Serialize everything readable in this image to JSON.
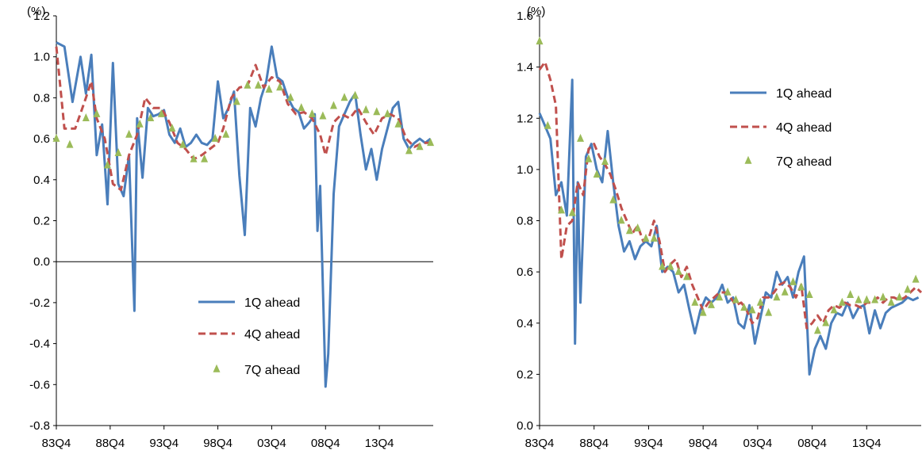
{
  "colors": {
    "q1": "#4a7ebb",
    "q4": "#c0504d",
    "q7": "#9bbb59",
    "axis": "#000000"
  },
  "legend": {
    "q1": "1Q ahead",
    "q4": "4Q ahead",
    "q7": "7Q ahead"
  },
  "chart_data": [
    {
      "type": "line",
      "unit_label": "(%)",
      "ylim": [
        -0.8,
        1.2
      ],
      "yticks": [
        "-0.8",
        "-0.6",
        "-0.4",
        "-0.2",
        "0.0",
        "0.2",
        "0.4",
        "0.6",
        "0.8",
        "1.0",
        "1.2"
      ],
      "xticks": [
        "83Q4",
        "88Q4",
        "93Q4",
        "98Q4",
        "03Q4",
        "08Q4",
        "13Q4"
      ],
      "legend_position": "lower-right",
      "series": [
        {
          "name": "1Q ahead",
          "style": "line",
          "x": [
            1983.75,
            1984.5,
            1985.25,
            1986,
            1986.5,
            1987,
            1987.5,
            1988,
            1988.5,
            1989,
            1989.5,
            1990,
            1990.5,
            1991,
            1991.25,
            1991.75,
            1992.25,
            1992.75,
            1993.25,
            1993.75,
            1994.25,
            1994.75,
            1995.25,
            1995.75,
            1996.25,
            1996.75,
            1997.25,
            1997.75,
            1998.25,
            1998.75,
            1999.25,
            1999.75,
            2000.25,
            2000.75,
            2001.25,
            2001.75,
            2002.25,
            2002.75,
            2003.25,
            2003.75,
            2004.25,
            2004.75,
            2005.25,
            2005.75,
            2006.25,
            2006.75,
            2007.25,
            2007.75,
            2008,
            2008.25,
            2008.75,
            2009,
            2009.5,
            2010,
            2010.5,
            2011,
            2011.5,
            2012,
            2012.5,
            2013,
            2013.5,
            2014,
            2014.5,
            2015,
            2015.5,
            2016,
            2016.5,
            2017,
            2017.5,
            2018,
            2018.5
          ],
          "y": [
            1.07,
            1.05,
            0.78,
            1.0,
            0.82,
            1.01,
            0.52,
            0.67,
            0.28,
            0.97,
            0.38,
            0.32,
            0.52,
            -0.24,
            0.7,
            0.41,
            0.75,
            0.71,
            0.72,
            0.74,
            0.62,
            0.58,
            0.65,
            0.56,
            0.58,
            0.62,
            0.58,
            0.57,
            0.6,
            0.88,
            0.7,
            0.75,
            0.83,
            0.42,
            0.13,
            0.75,
            0.66,
            0.8,
            0.88,
            1.05,
            0.9,
            0.88,
            0.8,
            0.75,
            0.73,
            0.65,
            0.68,
            0.72,
            0.15,
            0.37,
            -0.61,
            -0.45,
            0.33,
            0.66,
            0.72,
            0.78,
            0.82,
            0.62,
            0.45,
            0.55,
            0.4,
            0.55,
            0.65,
            0.75,
            0.78,
            0.6,
            0.55,
            0.58,
            0.6,
            0.58,
            0.6
          ]
        },
        {
          "name": "4Q ahead",
          "style": "dashed",
          "x": [
            1983.75,
            1984.5,
            1985.5,
            1986.5,
            1987,
            1987.5,
            1988.25,
            1989,
            1989.75,
            1990.5,
            1991.25,
            1992,
            1992.75,
            1993.5,
            1994.25,
            1995,
            1995.75,
            1996.5,
            1997.25,
            1998,
            1998.75,
            1999.25,
            2000,
            2000.75,
            2001.5,
            2002.25,
            2003,
            2003.75,
            2004.5,
            2005.25,
            2006,
            2006.75,
            2007.5,
            2008.25,
            2008.75,
            2009.5,
            2010.25,
            2011,
            2011.75,
            2012.5,
            2013.25,
            2014,
            2014.75,
            2015.5,
            2016.25,
            2017,
            2017.75,
            2018.5
          ],
          "y": [
            1.05,
            0.65,
            0.65,
            0.8,
            0.88,
            0.7,
            0.6,
            0.38,
            0.35,
            0.52,
            0.62,
            0.8,
            0.75,
            0.75,
            0.68,
            0.58,
            0.55,
            0.5,
            0.52,
            0.55,
            0.58,
            0.65,
            0.8,
            0.85,
            0.86,
            0.96,
            0.85,
            0.9,
            0.88,
            0.77,
            0.72,
            0.73,
            0.7,
            0.62,
            0.52,
            0.68,
            0.72,
            0.7,
            0.75,
            0.68,
            0.62,
            0.7,
            0.72,
            0.7,
            0.6,
            0.56,
            0.58,
            0.58
          ]
        },
        {
          "name": "7Q ahead",
          "style": "marker",
          "x": [
            1983.75,
            1985,
            1986.5,
            1987.5,
            1988.5,
            1989.5,
            1990.5,
            1991.5,
            1992.5,
            1993.5,
            1994.5,
            1995.5,
            1996.5,
            1997.5,
            1998.5,
            1999.5,
            2000.5,
            2001.5,
            2002.5,
            2003.5,
            2004.5,
            2005.5,
            2006.5,
            2007.5,
            2008.5,
            2009.5,
            2010.5,
            2011.5,
            2012.5,
            2013.5,
            2014.5,
            2015.5,
            2016.5,
            2017.5,
            2018.5
          ],
          "y": [
            0.6,
            0.57,
            0.7,
            0.72,
            0.47,
            0.53,
            0.62,
            0.67,
            0.7,
            0.72,
            0.65,
            0.57,
            0.5,
            0.5,
            0.6,
            0.62,
            0.78,
            0.86,
            0.86,
            0.84,
            0.85,
            0.8,
            0.75,
            0.72,
            0.71,
            0.76,
            0.8,
            0.81,
            0.74,
            0.73,
            0.72,
            0.67,
            0.54,
            0.56,
            0.58
          ]
        }
      ]
    },
    {
      "type": "line",
      "unit_label": "(%)",
      "ylim": [
        0.0,
        1.6
      ],
      "yticks": [
        "0.0",
        "0.2",
        "0.4",
        "0.6",
        "0.8",
        "1.0",
        "1.2",
        "1.4",
        "1.6"
      ],
      "xticks": [
        "83Q4",
        "88Q4",
        "93Q4",
        "98Q4",
        "03Q4",
        "08Q4",
        "13Q4"
      ],
      "legend_position": "top-right",
      "series": [
        {
          "name": "1Q ahead",
          "style": "line",
          "x": [
            1983.75,
            1984.25,
            1984.75,
            1985.25,
            1985.75,
            1986.25,
            1986.75,
            1987,
            1987.25,
            1987.5,
            1988,
            1988.5,
            1989,
            1989.5,
            1990,
            1990.5,
            1991,
            1991.5,
            1992,
            1992.5,
            1993,
            1993.5,
            1994,
            1994.5,
            1995,
            1995.5,
            1996,
            1996.5,
            1997,
            1997.5,
            1998,
            1998.5,
            1999,
            1999.5,
            2000,
            2000.5,
            2001,
            2001.5,
            2002,
            2002.5,
            2003,
            2003.5,
            2004,
            2004.5,
            2005,
            2005.5,
            2006,
            2006.5,
            2007,
            2007.5,
            2008,
            2008.5,
            2009,
            2009.5,
            2010,
            2010.5,
            2011,
            2011.5,
            2012,
            2012.5,
            2013,
            2013.5,
            2014,
            2014.5,
            2015,
            2015.5,
            2016,
            2016.5,
            2017,
            2017.5,
            2018,
            2018.5
          ],
          "y": [
            1.22,
            1.17,
            1.12,
            0.9,
            0.95,
            0.82,
            1.35,
            0.32,
            0.95,
            0.48,
            1.05,
            1.1,
            1.0,
            0.95,
            1.15,
            0.95,
            0.78,
            0.68,
            0.72,
            0.65,
            0.7,
            0.72,
            0.7,
            0.78,
            0.6,
            0.62,
            0.6,
            0.52,
            0.55,
            0.45,
            0.36,
            0.45,
            0.5,
            0.48,
            0.5,
            0.55,
            0.48,
            0.5,
            0.4,
            0.38,
            0.47,
            0.32,
            0.42,
            0.52,
            0.5,
            0.6,
            0.55,
            0.58,
            0.5,
            0.6,
            0.66,
            0.2,
            0.3,
            0.35,
            0.3,
            0.4,
            0.44,
            0.43,
            0.48,
            0.42,
            0.46,
            0.47,
            0.36,
            0.45,
            0.38,
            0.44,
            0.46,
            0.47,
            0.48,
            0.5,
            0.49,
            0.5
          ]
        },
        {
          "name": "4Q ahead",
          "style": "dashed",
          "x": [
            1983.75,
            1984.25,
            1984.75,
            1985.25,
            1985.75,
            1986.25,
            1986.75,
            1987.25,
            1987.75,
            1988.25,
            1988.75,
            1989.25,
            1989.75,
            1990.25,
            1990.75,
            1991.25,
            1991.75,
            1992.25,
            1992.75,
            1993.25,
            1993.75,
            1994.25,
            1994.75,
            1995.25,
            1995.75,
            1996.25,
            1996.75,
            1997.25,
            1997.75,
            1998.25,
            1998.75,
            1999.25,
            1999.75,
            2000.25,
            2000.75,
            2001.25,
            2001.75,
            2002.25,
            2002.75,
            2003.25,
            2003.75,
            2004.25,
            2004.75,
            2005.25,
            2005.75,
            2006.25,
            2006.75,
            2007.25,
            2007.75,
            2008.25,
            2008.75,
            2009.25,
            2009.75,
            2010.25,
            2010.75,
            2011.25,
            2011.75,
            2012.25,
            2012.75,
            2013.25,
            2013.75,
            2014.25,
            2014.75,
            2015.25,
            2015.75,
            2016.25,
            2016.75,
            2017.25,
            2017.75,
            2018.25,
            2018.75
          ],
          "y": [
            1.39,
            1.42,
            1.35,
            1.25,
            0.65,
            0.78,
            0.8,
            0.95,
            0.9,
            1.08,
            1.1,
            1.05,
            1.02,
            0.98,
            0.92,
            0.85,
            0.8,
            0.75,
            0.78,
            0.72,
            0.73,
            0.8,
            0.72,
            0.6,
            0.63,
            0.65,
            0.58,
            0.62,
            0.55,
            0.5,
            0.45,
            0.48,
            0.5,
            0.52,
            0.52,
            0.5,
            0.47,
            0.48,
            0.45,
            0.4,
            0.42,
            0.5,
            0.5,
            0.52,
            0.55,
            0.56,
            0.54,
            0.5,
            0.55,
            0.38,
            0.4,
            0.43,
            0.4,
            0.45,
            0.47,
            0.46,
            0.48,
            0.47,
            0.47,
            0.46,
            0.48,
            0.48,
            0.5,
            0.48,
            0.5,
            0.5,
            0.49,
            0.5,
            0.52,
            0.54,
            0.52
          ]
        },
        {
          "name": "7Q ahead",
          "style": "marker",
          "x": [
            1983.75,
            1984.5,
            1985.75,
            1986.75,
            1987.5,
            1988.25,
            1989,
            1989.75,
            1990.5,
            1991.25,
            1992,
            1992.75,
            1993.5,
            1994.25,
            1995,
            1995.75,
            1996.5,
            1997.25,
            1998,
            1998.75,
            1999.5,
            2000.25,
            2001,
            2001.75,
            2002.5,
            2003.25,
            2004,
            2004.75,
            2005.5,
            2006.25,
            2007,
            2007.75,
            2008.5,
            2009.25,
            2010,
            2010.75,
            2011.5,
            2012.25,
            2013,
            2013.75,
            2014.5,
            2015.25,
            2016,
            2016.75,
            2017.5,
            2018.25
          ],
          "y": [
            1.5,
            1.17,
            0.84,
            0.83,
            1.12,
            1.04,
            0.98,
            1.03,
            0.88,
            0.8,
            0.76,
            0.77,
            0.73,
            0.73,
            0.62,
            0.62,
            0.6,
            0.58,
            0.48,
            0.44,
            0.47,
            0.5,
            0.52,
            0.49,
            0.46,
            0.45,
            0.48,
            0.44,
            0.5,
            0.52,
            0.56,
            0.54,
            0.51,
            0.37,
            0.4,
            0.45,
            0.48,
            0.51,
            0.49,
            0.49,
            0.49,
            0.5,
            0.48,
            0.5,
            0.53,
            0.57
          ]
        }
      ]
    }
  ]
}
